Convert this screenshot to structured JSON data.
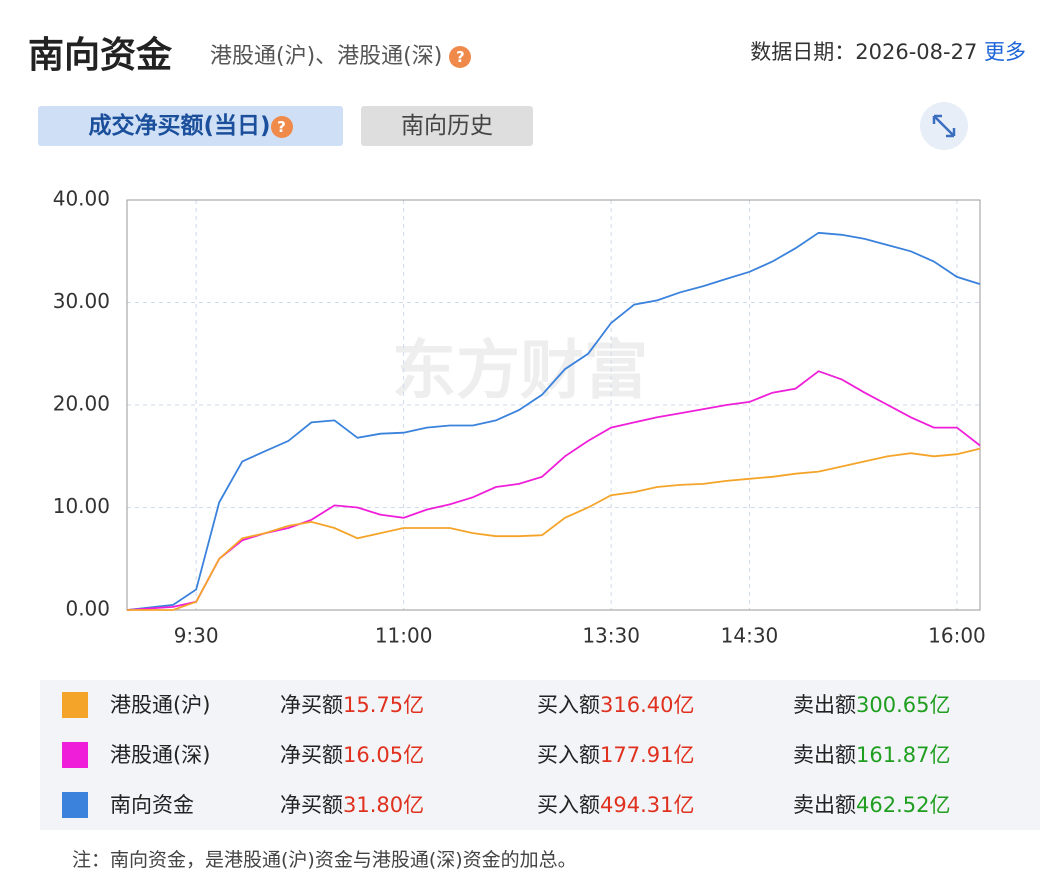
{
  "header": {
    "title": "南向资金",
    "subtitle": "港股通(沪)、港股通(深)",
    "help": "?",
    "date_label": "数据日期：",
    "date": "2026-08-27",
    "more": "更多"
  },
  "tabs": [
    {
      "label": "成交净买额(当日)",
      "help": "?"
    },
    {
      "label": "南向历史"
    }
  ],
  "chart_data": {
    "type": "line",
    "watermark": "东方财富",
    "x": [
      "9:00",
      "9:20",
      "9:30",
      "9:40",
      "9:50",
      "10:00",
      "10:10",
      "10:20",
      "10:30",
      "10:40",
      "10:50",
      "11:00",
      "11:10",
      "11:20",
      "11:30",
      "11:40",
      "11:50",
      "12:00",
      "13:10",
      "13:20",
      "13:30",
      "13:40",
      "13:50",
      "14:00",
      "14:10",
      "14:20",
      "14:30",
      "14:40",
      "14:50",
      "15:00",
      "15:10",
      "15:20",
      "15:30",
      "15:40",
      "15:50",
      "16:00",
      "16:10"
    ],
    "xlim": [
      "9:00",
      "16:10"
    ],
    "xticks": [
      "9:30",
      "11:00",
      "13:30",
      "14:30",
      "16:00"
    ],
    "ylim": [
      0,
      40
    ],
    "yticks": [
      {
        "value": 0,
        "label": "0.00"
      },
      {
        "value": 10,
        "label": "10.00"
      },
      {
        "value": 20,
        "label": "20.00"
      },
      {
        "value": 30,
        "label": "30.00"
      },
      {
        "value": 40,
        "label": "40.00"
      }
    ],
    "grid": true,
    "series": [
      {
        "name": "港股通(沪)",
        "color": "#f5a42a",
        "values": [
          0,
          0,
          0.8,
          5,
          7,
          7.5,
          8.2,
          8.6,
          8,
          7,
          7.5,
          8,
          8,
          8,
          7.5,
          7.2,
          7.2,
          7.3,
          9,
          10,
          11.2,
          11.5,
          12,
          12.2,
          12.3,
          12.6,
          12.8,
          13,
          13.3,
          13.5,
          14,
          14.5,
          15,
          15.3,
          15,
          15.2,
          15.75
        ]
      },
      {
        "name": "港股通(深)",
        "color": "#ef1fd9",
        "values": [
          0,
          0.3,
          0.8,
          5,
          6.8,
          7.5,
          8,
          8.8,
          10.2,
          10,
          9.3,
          9,
          9.8,
          10.3,
          11,
          12,
          12.3,
          13,
          15,
          16.5,
          17.8,
          18.3,
          18.8,
          19.2,
          19.6,
          20,
          20.3,
          21.2,
          21.6,
          23.3,
          22.5,
          21.2,
          20,
          18.8,
          17.8,
          17.8,
          16.05
        ]
      },
      {
        "name": "南向资金",
        "color": "#3a82dc",
        "values": [
          0,
          0.5,
          2,
          10.5,
          14.5,
          15.5,
          16.5,
          18.3,
          18.5,
          16.8,
          17.2,
          17.3,
          17.8,
          18,
          18,
          18.5,
          19.5,
          21,
          23.5,
          25,
          28,
          29.8,
          30.2,
          31,
          31.6,
          32.3,
          33,
          34,
          35.3,
          36.8,
          36.6,
          36.2,
          35.6,
          35,
          34,
          32.5,
          31.8
        ]
      }
    ]
  },
  "summary": {
    "labels": [
      "净买额",
      "买入额",
      "卖出额"
    ],
    "rows": [
      [
        "15.75亿",
        "316.40亿",
        "300.65亿"
      ],
      [
        "16.05亿",
        "177.91亿",
        "161.87亿"
      ],
      [
        "31.80亿",
        "494.31亿",
        "462.52亿"
      ]
    ]
  },
  "note": "注：南向资金，是港股通(沪)资金与港股通(深)资金的加总。"
}
